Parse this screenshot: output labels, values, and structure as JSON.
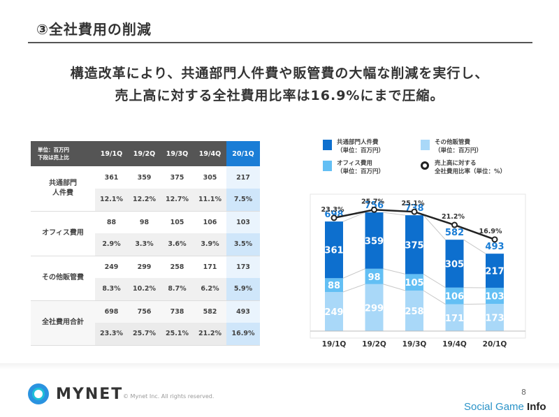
{
  "slide": {
    "section_title": "③全社費用の削減",
    "headline_line1": "構造改革により、共通部門人件費や販管費の大幅な削減を実行し、",
    "headline_line2": "売上高に対する全社費用比率は16.9%にまで圧縮。",
    "page_number": "8"
  },
  "table": {
    "unit_label_line1": "単位：百万円",
    "unit_label_line2": "下段は売上比",
    "quarters": [
      "19/1Q",
      "19/2Q",
      "19/3Q",
      "19/4Q",
      "20/1Q"
    ],
    "rows": [
      {
        "label_line1": "共通部門",
        "label_line2": "人件費",
        "amounts": [
          "361",
          "359",
          "375",
          "305",
          "217"
        ],
        "ratios": [
          "12.1%",
          "12.2%",
          "12.7%",
          "11.1%",
          "7.5%"
        ]
      },
      {
        "label_line1": "オフィス費用",
        "label_line2": "",
        "amounts": [
          "88",
          "98",
          "105",
          "106",
          "103"
        ],
        "ratios": [
          "2.9%",
          "3.3%",
          "3.6%",
          "3.9%",
          "3.5%"
        ]
      },
      {
        "label_line1": "その他販管費",
        "label_line2": "",
        "amounts": [
          "249",
          "299",
          "258",
          "171",
          "173"
        ],
        "ratios": [
          "8.3%",
          "10.2%",
          "8.7%",
          "6.2%",
          "5.9%"
        ]
      },
      {
        "label_line1": "全社費用合計",
        "label_line2": "",
        "amounts": [
          "698",
          "756",
          "738",
          "582",
          "493"
        ],
        "ratios": [
          "23.3%",
          "25.7%",
          "25.1%",
          "21.2%",
          "16.9%"
        ]
      }
    ]
  },
  "legend": {
    "personnel_line1": "共通部門人件費",
    "personnel_line2": "（単位：百万円）",
    "other_line1": "その他販管費",
    "other_line2": "（単位：百万円）",
    "office_line1": "オフィス費用",
    "office_line2": "（単位：百万円）",
    "ratio_line1": "売上高に対する",
    "ratio_line2": "全社費用比率（単位：%）"
  },
  "chart_data": {
    "type": "bar",
    "stacked": true,
    "categories": [
      "19/1Q",
      "19/2Q",
      "19/3Q",
      "19/4Q",
      "20/1Q"
    ],
    "series": [
      {
        "name": "その他販管費",
        "values": [
          249,
          299,
          258,
          171,
          173
        ],
        "color": "#a9d8f8"
      },
      {
        "name": "オフィス費用",
        "values": [
          88,
          98,
          105,
          106,
          103
        ],
        "color": "#63bff4"
      },
      {
        "name": "共通部門人件費",
        "values": [
          361,
          359,
          375,
          305,
          217
        ],
        "color": "#0d6fce"
      }
    ],
    "totals": [
      698,
      756,
      738,
      582,
      493
    ],
    "line_series": {
      "name": "売上高に対する全社費用比率",
      "values": [
        23.3,
        25.7,
        25.1,
        21.2,
        16.9
      ],
      "labels": [
        "23.3%",
        "25.7%",
        "25.1%",
        "21.2%",
        "16.9%"
      ]
    },
    "ylim": [
      0,
      900
    ],
    "grid": false,
    "legend_position": "top"
  },
  "footer": {
    "brand": "MYNET",
    "copyright": "© Mynet Inc. All rights reserved.",
    "watermark_main": "Social Game ",
    "watermark_bold": "Info"
  }
}
